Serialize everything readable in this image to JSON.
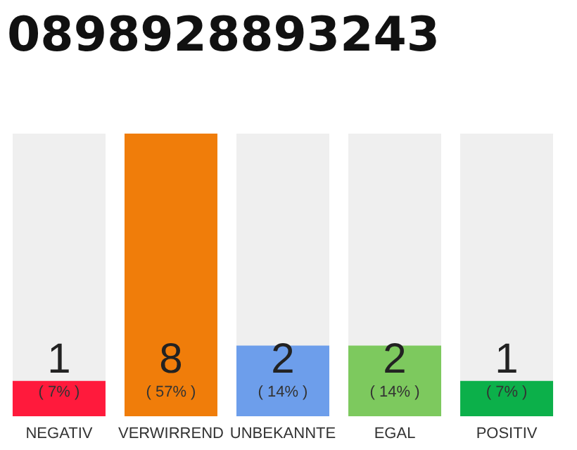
{
  "chart_data": {
    "type": "bar",
    "title": "0898928893243",
    "categories": [
      "NEGATIV",
      "VERWIRREND",
      "UNBEKANNTE",
      "EGAL",
      "POSITIV"
    ],
    "values": [
      1,
      8,
      2,
      2,
      1
    ],
    "colors": [
      "#ff1a3c",
      "#f07d0a",
      "#6d9eeb",
      "#7dc95e",
      "#0cb04a"
    ],
    "data_labels": true,
    "annotations": [
      "( 7% )",
      "( 57% )",
      "( 14% )",
      "( 14% )",
      "( 7% )"
    ]
  }
}
